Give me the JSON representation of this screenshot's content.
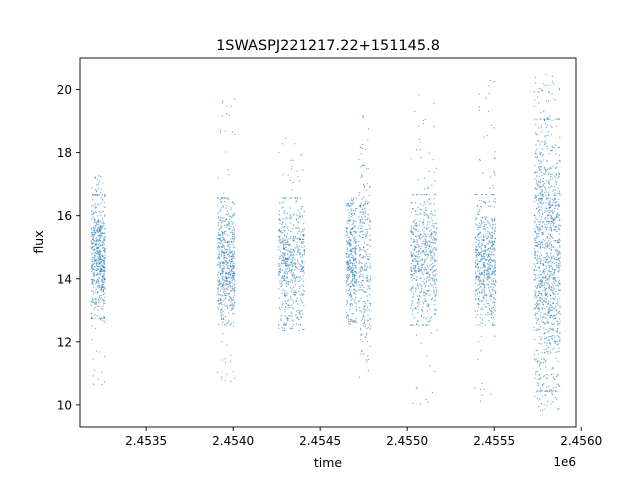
{
  "chart_data": {
    "type": "scatter",
    "title": "1SWASPJ221217.22+151145.8",
    "xlabel": "time",
    "ylabel": "flux",
    "x_offset_label": "1e6",
    "x_scale": 1000000,
    "xlim": [
      2453120,
      2455970
    ],
    "ylim": [
      9.3,
      21.0
    ],
    "x_ticks": [
      2453500,
      2454000,
      2454500,
      2455000,
      2455500,
      2456000
    ],
    "x_tick_labels": [
      "2.4535",
      "2.4540",
      "2.4545",
      "2.4550",
      "2.4555",
      "2.4560"
    ],
    "y_ticks": [
      10,
      12,
      14,
      16,
      18,
      20
    ],
    "y_tick_labels": [
      "10",
      "12",
      "14",
      "16",
      "18",
      "20"
    ],
    "grid": false,
    "legend": "none",
    "marker_color": "#1f77b4",
    "series": [
      {
        "observing_seasons": [
          {
            "x_start": 2453185,
            "x_end": 2453265,
            "y_low": 13.0,
            "y_high": 16.4,
            "outlier_y_min": 10.6,
            "outlier_y_max": 17.3,
            "density": 1.0
          },
          {
            "x_start": 2453910,
            "x_end": 2454010,
            "y_low": 12.8,
            "y_high": 16.3,
            "outlier_y_min": 10.6,
            "outlier_y_max": 19.7,
            "density": 1.0
          },
          {
            "x_start": 2454260,
            "x_end": 2454410,
            "y_low": 12.8,
            "y_high": 16.3,
            "outlier_y_min": 12.3,
            "outlier_y_max": 18.5,
            "density": 1.0
          },
          {
            "x_start": 2454650,
            "x_end": 2454710,
            "y_low": 12.9,
            "y_high": 16.3,
            "outlier_y_min": 12.5,
            "outlier_y_max": 16.4,
            "density": 0.6
          },
          {
            "x_start": 2454720,
            "x_end": 2454790,
            "y_low": 12.0,
            "y_high": 17.2,
            "outlier_y_min": 10.3,
            "outlier_y_max": 19.4,
            "density": 0.5
          },
          {
            "x_start": 2455020,
            "x_end": 2455170,
            "y_low": 12.8,
            "y_high": 16.4,
            "outlier_y_min": 9.9,
            "outlier_y_max": 20.0,
            "density": 1.0
          },
          {
            "x_start": 2455390,
            "x_end": 2455510,
            "y_low": 12.8,
            "y_high": 16.4,
            "outlier_y_min": 10.0,
            "outlier_y_max": 20.4,
            "density": 1.0
          },
          {
            "x_start": 2455730,
            "x_end": 2455880,
            "y_low": 11.0,
            "y_high": 18.5,
            "outlier_y_min": 9.8,
            "outlier_y_max": 20.5,
            "density": 2.0
          }
        ]
      }
    ]
  }
}
